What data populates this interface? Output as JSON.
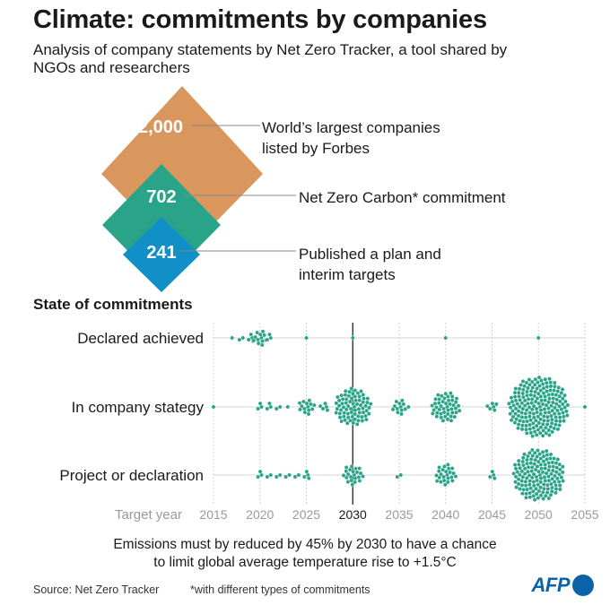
{
  "header": {
    "title": "Climate: commitments by companies",
    "subtitle": "Analysis of company statements by Net Zero Tracker, a tool shared by NGOs and researchers"
  },
  "funnel": {
    "levels": [
      {
        "value": "2,000",
        "label": [
          "World’s largest companies",
          "listed by Forbes"
        ],
        "color": "#d9975e"
      },
      {
        "value": "702",
        "label": [
          "Net Zero Carbon* commitment"
        ],
        "color": "#2aa489"
      },
      {
        "value": "241",
        "label": [
          "Published a plan and",
          "interim targets"
        ],
        "color": "#1190c8"
      }
    ]
  },
  "section_title": "State of commitments",
  "chart_data": {
    "type": "scatter",
    "title": "State of commitments",
    "xlabel": "Target year",
    "xlim": [
      2015,
      2055
    ],
    "xticks": [
      2015,
      2020,
      2025,
      2030,
      2035,
      2040,
      2045,
      2050,
      2055
    ],
    "highlight_year": 2030,
    "point_color": "#2aa489",
    "categories": [
      "Declared achieved",
      "In company stategy",
      "Project or declaration"
    ],
    "series": [
      {
        "name": "Declared achieved",
        "clusters": [
          {
            "year": 2017,
            "count": 1
          },
          {
            "year": 2018,
            "count": 2
          },
          {
            "year": 2019,
            "count": 4
          },
          {
            "year": 2020,
            "count": 12
          },
          {
            "year": 2021,
            "count": 3
          },
          {
            "year": 2025,
            "count": 1
          },
          {
            "year": 2030,
            "count": 1
          },
          {
            "year": 2040,
            "count": 1
          },
          {
            "year": 2050,
            "count": 1
          }
        ]
      },
      {
        "name": "In company stategy",
        "clusters": [
          {
            "year": 2015,
            "count": 1
          },
          {
            "year": 2020,
            "count": 3
          },
          {
            "year": 2021,
            "count": 3
          },
          {
            "year": 2022,
            "count": 2
          },
          {
            "year": 2023,
            "count": 1
          },
          {
            "year": 2025,
            "count": 14
          },
          {
            "year": 2027,
            "count": 5
          },
          {
            "year": 2030,
            "count": 72
          },
          {
            "year": 2035,
            "count": 12
          },
          {
            "year": 2036,
            "count": 1
          },
          {
            "year": 2040,
            "count": 46
          },
          {
            "year": 2045,
            "count": 6
          },
          {
            "year": 2050,
            "count": 190
          },
          {
            "year": 2055,
            "count": 1
          }
        ]
      },
      {
        "name": "Project or declaration",
        "clusters": [
          {
            "year": 2020,
            "count": 3
          },
          {
            "year": 2021,
            "count": 2
          },
          {
            "year": 2022,
            "count": 2
          },
          {
            "year": 2023,
            "count": 2
          },
          {
            "year": 2024,
            "count": 2
          },
          {
            "year": 2025,
            "count": 4
          },
          {
            "year": 2030,
            "count": 22
          },
          {
            "year": 2035,
            "count": 2
          },
          {
            "year": 2040,
            "count": 24
          },
          {
            "year": 2045,
            "count": 4
          },
          {
            "year": 2050,
            "count": 140
          }
        ]
      }
    ]
  },
  "footer": {
    "note_line1": "Emissions must by reduced by 45% by 2030 to have a chance",
    "note_line2": "to limit global average temperature rise to +1.5°C",
    "source": "Source: Net Zero Tracker",
    "footnote": "*with different types of commitments",
    "logo": "AFP"
  }
}
